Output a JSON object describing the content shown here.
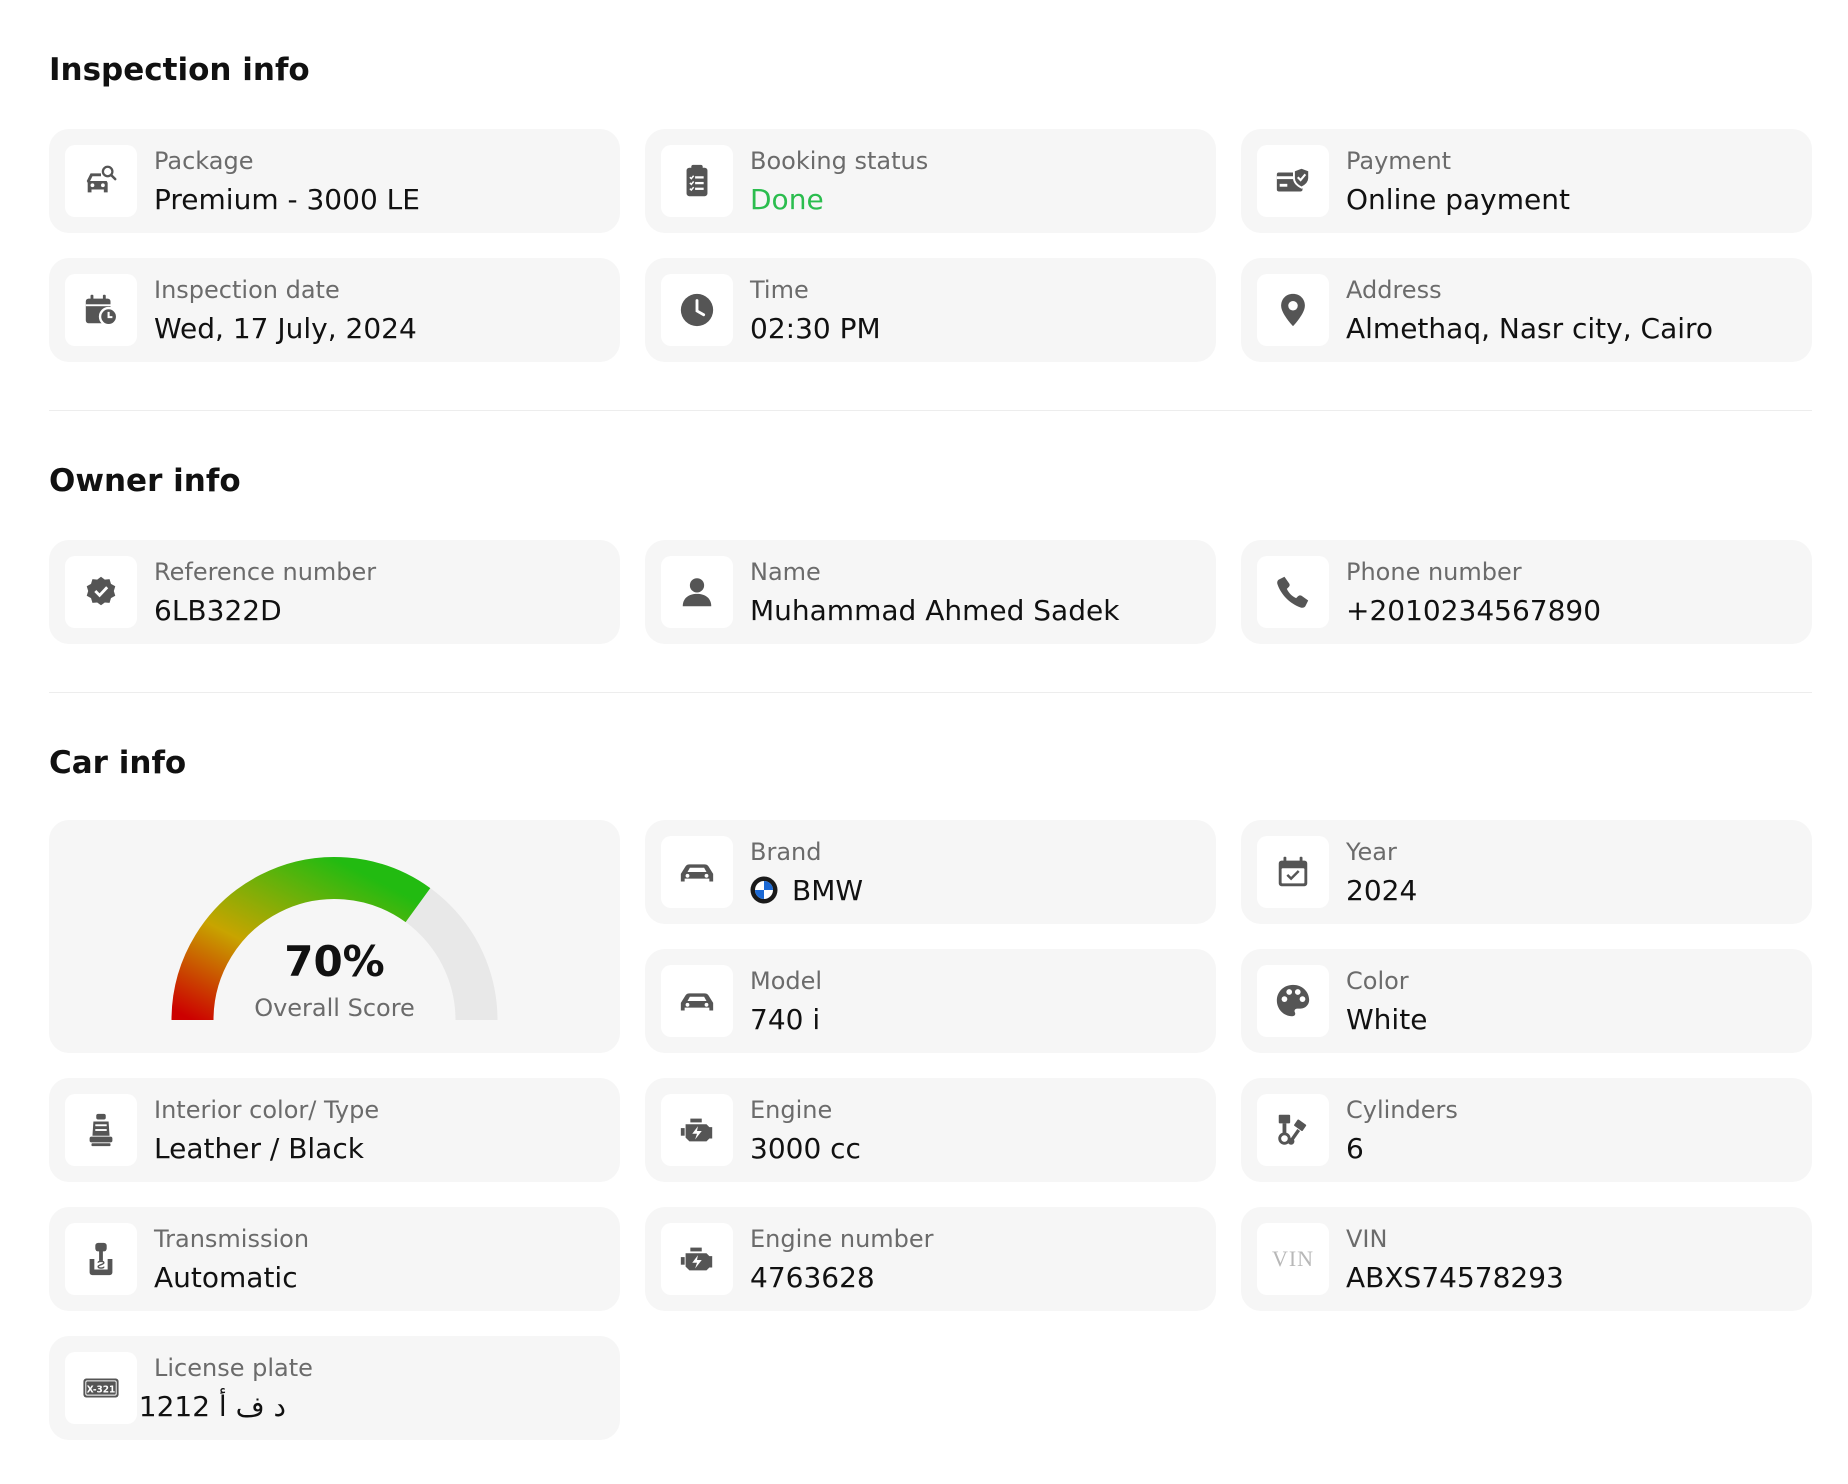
{
  "inspection": {
    "title": "Inspection info",
    "package": {
      "label": "Package",
      "value": "Premium - 3000 LE",
      "icon": "car-search-icon"
    },
    "booking_status": {
      "label": "Booking status",
      "value": "Done",
      "icon": "checklist-icon",
      "color": "#2bbd4e"
    },
    "payment": {
      "label": "Payment",
      "value": "Online payment",
      "icon": "card-shield-icon"
    },
    "date": {
      "label": "Inspection date",
      "value": "Wed, 17 July, 2024",
      "icon": "calendar-clock-icon"
    },
    "time": {
      "label": "Time",
      "value": "02:30 PM",
      "icon": "clock-icon"
    },
    "address": {
      "label": "Address",
      "value": "Almethaq, Nasr city, Cairo",
      "icon": "location-pin-icon"
    }
  },
  "owner": {
    "title": "Owner info",
    "reference": {
      "label": "Reference number",
      "value": "6LB322D",
      "icon": "verified-badge-icon"
    },
    "name": {
      "label": "Name",
      "value": "Muhammad Ahmed Sadek",
      "icon": "person-icon"
    },
    "phone": {
      "label": "Phone number",
      "value": "+2010234567890",
      "icon": "phone-icon"
    }
  },
  "car": {
    "title": "Car info",
    "score": {
      "value": "70%",
      "label": "Overall Score",
      "fraction": 0.7,
      "colors": [
        "#cc0000",
        "#c8a400",
        "#22bb11"
      ],
      "track_color": "#e8e8e8"
    },
    "brand": {
      "label": "Brand",
      "value": "BMW",
      "icon": "car-icon",
      "logo": "bmw-logo-icon"
    },
    "year": {
      "label": "Year",
      "value": "2024",
      "icon": "calendar-check-icon"
    },
    "model": {
      "label": "Model",
      "value": "740 i",
      "icon": "car-icon"
    },
    "color": {
      "label": "Color",
      "value": "White",
      "icon": "palette-icon"
    },
    "interior": {
      "label": "Interior color/ Type",
      "value": "Leather / Black",
      "icon": "car-seat-icon"
    },
    "engine": {
      "label": "Engine",
      "value": "3000 cc",
      "icon": "engine-icon"
    },
    "cylinders": {
      "label": "Cylinders",
      "value": "6",
      "icon": "pistons-icon"
    },
    "transmission": {
      "label": "Transmission",
      "value": "Automatic",
      "icon": "gear-shift-icon"
    },
    "engine_number": {
      "label": "Engine number",
      "value": "4763628",
      "icon": "engine-icon"
    },
    "vin": {
      "label": "VIN",
      "value": "ABXS74578293",
      "icon_text": "VIN"
    },
    "license": {
      "label": "License plate",
      "value": "د ف أ 1212",
      "icon": "license-plate-icon",
      "icon_text": "X-321"
    }
  }
}
